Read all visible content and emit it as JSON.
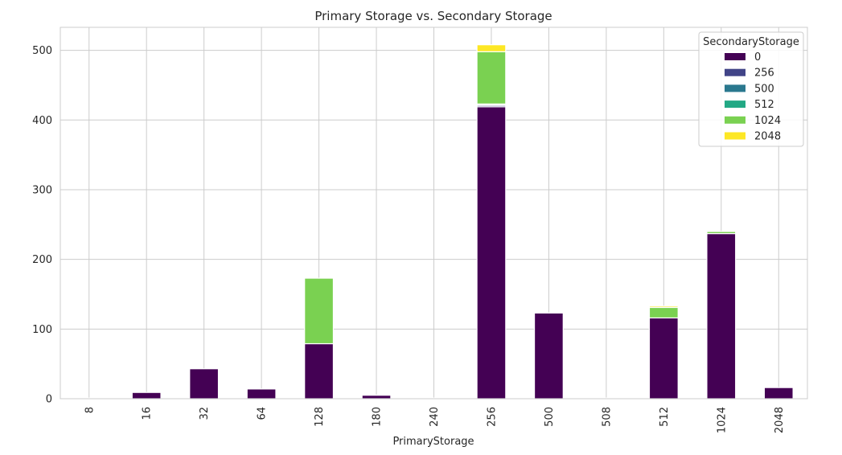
{
  "chart_data": {
    "type": "bar",
    "stacked": true,
    "title": "Primary Storage vs. Secondary Storage",
    "xlabel": "PrimaryStorage",
    "ylabel": "",
    "categories": [
      "8",
      "16",
      "32",
      "64",
      "128",
      "180",
      "240",
      "256",
      "500",
      "508",
      "512",
      "1024",
      "2048"
    ],
    "ylim": [
      0,
      533
    ],
    "yticks": [
      0,
      100,
      200,
      300,
      400,
      500
    ],
    "grid": true,
    "legend": {
      "title": "SecondaryStorage",
      "placement": "top-right"
    },
    "series": [
      {
        "name": "0",
        "color": "#440154",
        "values": [
          1,
          9,
          43,
          14,
          79,
          5,
          1,
          419,
          123,
          1,
          116,
          237,
          16
        ]
      },
      {
        "name": "256",
        "color": "#414487",
        "values": [
          0,
          0,
          0,
          0,
          0,
          0,
          0,
          2,
          0,
          0,
          0,
          0,
          0
        ]
      },
      {
        "name": "500",
        "color": "#2a788e",
        "values": [
          0,
          0,
          0,
          0,
          0,
          0,
          0,
          1,
          0,
          0,
          0,
          0,
          0
        ]
      },
      {
        "name": "512",
        "color": "#22a884",
        "values": [
          0,
          0,
          0,
          0,
          0,
          0,
          0,
          1,
          0,
          0,
          0,
          0,
          0
        ]
      },
      {
        "name": "1024",
        "color": "#7ad151",
        "values": [
          0,
          0,
          0,
          0,
          94,
          0,
          0,
          75,
          0,
          0,
          15,
          3,
          0
        ]
      },
      {
        "name": "2048",
        "color": "#fde725",
        "values": [
          0,
          0,
          0,
          0,
          0,
          0,
          0,
          10,
          0,
          0,
          2,
          0,
          0
        ]
      }
    ]
  }
}
